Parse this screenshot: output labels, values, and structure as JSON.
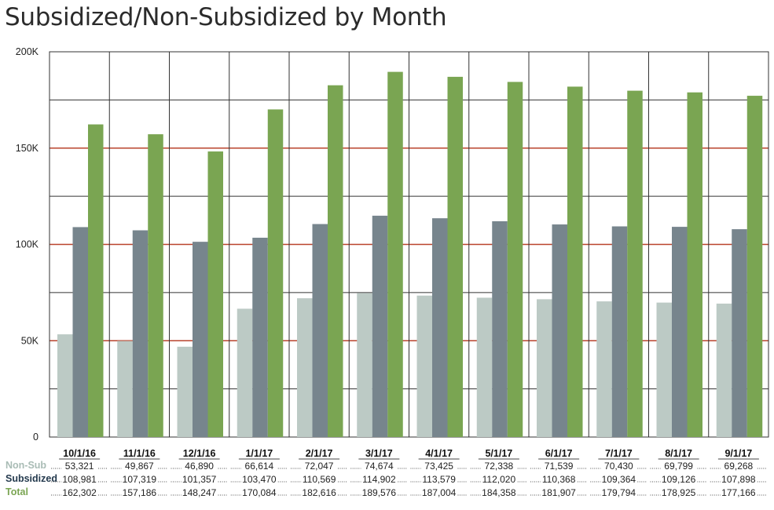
{
  "title": "Subsidized/Non-Subsidized by Month",
  "colors": {
    "nonsub": "#bccac5",
    "subsidized": "#77858d",
    "total": "#7aa552",
    "redline": "#b9432c",
    "gridline": "#333333"
  },
  "chart_data": {
    "type": "bar",
    "title": "Subsidized/Non-Subsidized by Month",
    "categories": [
      "10/1/16",
      "11/1/16",
      "12/1/16",
      "1/1/17",
      "2/1/17",
      "3/1/17",
      "4/1/17",
      "5/1/17",
      "6/1/17",
      "7/1/17",
      "8/1/17",
      "9/1/17"
    ],
    "series": [
      {
        "name": "Non-Sub",
        "values": [
          53321,
          49867,
          46890,
          66614,
          72047,
          74674,
          73425,
          72338,
          71539,
          70430,
          69799,
          69268
        ]
      },
      {
        "name": "Subsidized",
        "values": [
          108981,
          107319,
          101357,
          103470,
          110569,
          114902,
          113579,
          112020,
          110368,
          109364,
          109126,
          107898
        ]
      },
      {
        "name": "Total",
        "values": [
          162302,
          157186,
          148247,
          170084,
          182616,
          189576,
          187004,
          184358,
          181907,
          179794,
          178925,
          177166
        ]
      }
    ],
    "ylim": [
      0,
      200000
    ],
    "yticks": [
      0,
      50000,
      100000,
      150000,
      200000
    ],
    "ytick_labels": [
      "0",
      "50K",
      "100K",
      "150K",
      "200K"
    ],
    "table_values": [
      [
        "53,321",
        "49,867",
        "46,890",
        "66,614",
        "72,047",
        "74,674",
        "73,425",
        "72,338",
        "71,539",
        "70,430",
        "69,799",
        "69,268"
      ],
      [
        "108,981",
        "107,319",
        "101,357",
        "103,470",
        "110,569",
        "114,902",
        "113,579",
        "112,020",
        "110,368",
        "109,364",
        "109,126",
        "107,898"
      ],
      [
        "162,302",
        "157,186",
        "148,247",
        "170,084",
        "182,616",
        "189,576",
        "187,004",
        "184,358",
        "181,907",
        "179,794",
        "178,925",
        "177,166"
      ]
    ],
    "legend": "table-below"
  }
}
